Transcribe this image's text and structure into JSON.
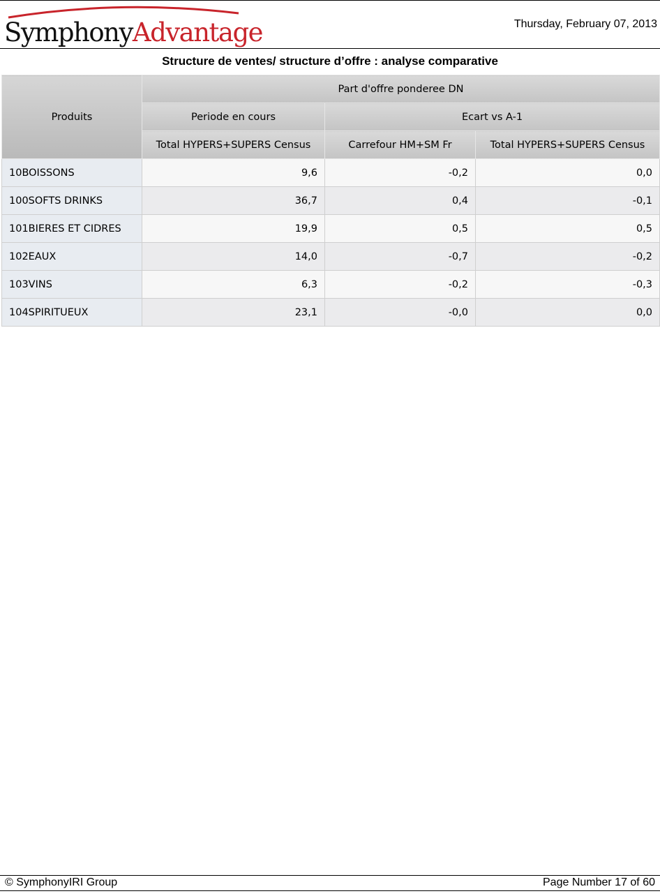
{
  "header": {
    "logo": {
      "part1": "Symphony",
      "part2": "Advantage",
      "accent_color": "#c8242b"
    },
    "date": "Thursday, February 07, 2013"
  },
  "report": {
    "title": "Structure de ventes/ structure d’offre : analyse comparative"
  },
  "table": {
    "row_header": "Produits",
    "group_header": "Part d'offre ponderee DN",
    "period_headers": [
      "Periode en cours",
      "Ecart vs A-1"
    ],
    "columns": [
      "Total HYPERS+SUPERS Census",
      "Carrefour HM+SM Fr",
      "Total HYPERS+SUPERS Census"
    ],
    "rows": [
      {
        "product": "10BOISSONS",
        "values": [
          "9,6",
          "-0,2",
          "0,0"
        ]
      },
      {
        "product": "100SOFTS DRINKS",
        "values": [
          "36,7",
          "0,4",
          "-0,1"
        ]
      },
      {
        "product": "101BIERES ET CIDRES",
        "values": [
          "19,9",
          "0,5",
          "0,5"
        ]
      },
      {
        "product": "102EAUX",
        "values": [
          "14,0",
          "-0,7",
          "-0,2"
        ]
      },
      {
        "product": "103VINS",
        "values": [
          "6,3",
          "-0,2",
          "-0,3"
        ]
      },
      {
        "product": "104SPIRITUEUX",
        "values": [
          "23,1",
          "-0,0",
          "0,0"
        ]
      }
    ]
  },
  "footer": {
    "copyright": "© SymphonyIRI Group",
    "page_number": "Page Number 17 of 60"
  }
}
